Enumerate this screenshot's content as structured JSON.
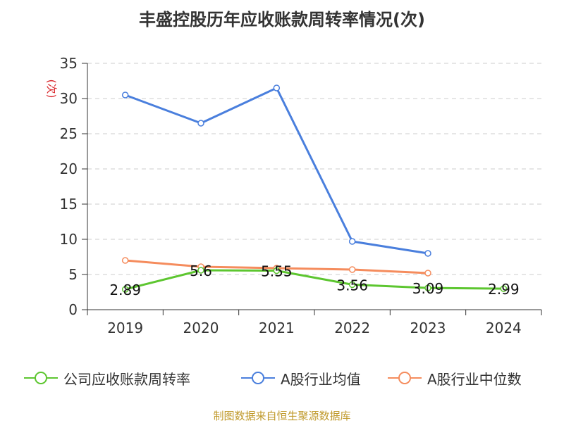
{
  "title": "丰盛控股历年应收账款周转率情况(次)",
  "source": "制图数据来自恒生聚源数据库",
  "chart_data": {
    "type": "line",
    "title": "丰盛控股历年应收账款周转率情况(次)",
    "ylabel": "(次)",
    "xlabel": "",
    "categories": [
      "2019",
      "2020",
      "2021",
      "2022",
      "2023",
      "2024"
    ],
    "ylim": [
      0,
      35
    ],
    "yticks": [
      0,
      5,
      10,
      15,
      20,
      25,
      30,
      35
    ],
    "grid": true,
    "legend_position": "bottom",
    "series": [
      {
        "name": "公司应收账款周转率",
        "color": "#5dc630",
        "values": [
          2.89,
          5.6,
          5.55,
          3.56,
          3.09,
          2.99
        ],
        "labels": [
          "2.89",
          "5.6",
          "5.55",
          "3.56",
          "3.09",
          "2.99"
        ],
        "show_labels": true
      },
      {
        "name": "A股行业均值",
        "color": "#4a7fdd",
        "values": [
          30.5,
          26.5,
          31.5,
          9.7,
          8.0,
          null
        ],
        "show_labels": false
      },
      {
        "name": "A股行业中位数",
        "color": "#f58c5d",
        "values": [
          7.0,
          6.1,
          5.9,
          5.7,
          5.2,
          null
        ],
        "show_labels": false
      }
    ]
  }
}
